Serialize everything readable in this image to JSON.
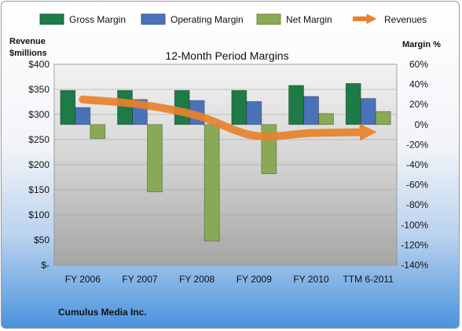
{
  "chart_data": {
    "type": "bar",
    "title": "12-Month Period Margins",
    "categories": [
      "FY 2006",
      "FY 2007",
      "FY 2008",
      "FY 2009",
      "FY 2010",
      "TTM 6-2011"
    ],
    "left_axis": {
      "label_line1": "Revenue",
      "label_line2": "$millions",
      "ylim": [
        0,
        400
      ],
      "ticks": [
        {
          "value": 400,
          "label": "$400"
        },
        {
          "value": 350,
          "label": "$350"
        },
        {
          "value": 300,
          "label": "$300"
        },
        {
          "value": 250,
          "label": "$250"
        },
        {
          "value": 200,
          "label": "$200"
        },
        {
          "value": 150,
          "label": "$150"
        },
        {
          "value": 100,
          "label": "$100"
        },
        {
          "value": 50,
          "label": "$50"
        },
        {
          "value": 0,
          "label": "$-"
        }
      ]
    },
    "right_axis": {
      "label": "Margin %",
      "ylim": [
        -140,
        60
      ],
      "ticks": [
        {
          "value": 60,
          "label": "60%"
        },
        {
          "value": 40,
          "label": "40%"
        },
        {
          "value": 20,
          "label": "20%"
        },
        {
          "value": 0,
          "label": "0%"
        },
        {
          "value": -20,
          "label": "-20%"
        },
        {
          "value": -40,
          "label": "-40%"
        },
        {
          "value": -60,
          "label": "-60%"
        },
        {
          "value": -80,
          "label": "-80%"
        },
        {
          "value": -100,
          "label": "-100%"
        },
        {
          "value": -120,
          "label": "-120%"
        },
        {
          "value": -140,
          "label": "-140%"
        }
      ]
    },
    "series": [
      {
        "name": "Gross Margin",
        "kind": "bar",
        "axis": "right",
        "color": "#1e7b45",
        "values": [
          34,
          34,
          34,
          34,
          39,
          41
        ]
      },
      {
        "name": "Operating Margin",
        "kind": "bar",
        "axis": "right",
        "color": "#4a72b8",
        "values": [
          17,
          25,
          24,
          23,
          28,
          26
        ]
      },
      {
        "name": "Net Margin",
        "kind": "bar",
        "axis": "right",
        "color": "#8aa956",
        "values": [
          -14,
          -67,
          -116,
          -49,
          11,
          13
        ]
      },
      {
        "name": "Revenues",
        "kind": "line",
        "axis": "left",
        "color": "#e8822e",
        "values": [
          330,
          320,
          298,
          258,
          263,
          265
        ]
      }
    ],
    "legend_position": "top",
    "grid": true
  },
  "footer": {
    "company": "Cumulus Media Inc."
  }
}
